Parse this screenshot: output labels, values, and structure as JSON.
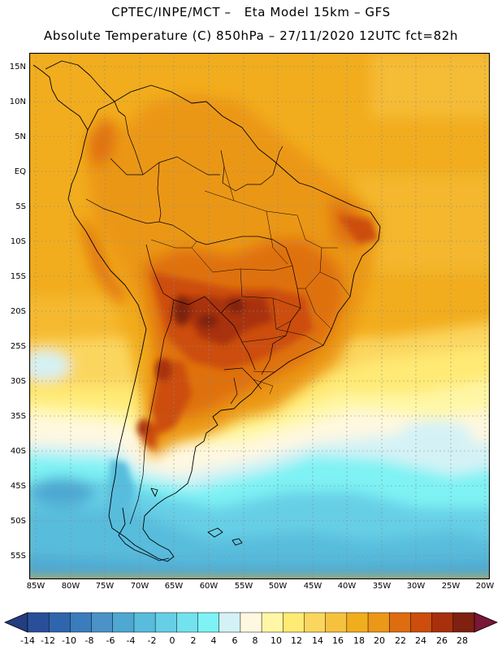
{
  "title": {
    "line1": "CPTEC/INPE/MCT –   Eta Model 15km – GFS",
    "line2": "Absolute Temperature (C) 850hPa – 27/11/2020 12UTC fct=82h"
  },
  "lat_labels": [
    "15N",
    "10N",
    "5N",
    "EQ",
    "5S",
    "10S",
    "15S",
    "20S",
    "25S",
    "30S",
    "35S",
    "40S",
    "45S",
    "50S",
    "55S"
  ],
  "lon_labels": [
    "85W",
    "80W",
    "75W",
    "70W",
    "65W",
    "60W",
    "55W",
    "50W",
    "45W",
    "40W",
    "35W",
    "30W",
    "25W",
    "20W"
  ],
  "colorbar": {
    "labels": [
      "-14",
      "-12",
      "-10",
      "-8",
      "-6",
      "-4",
      "-2",
      "0",
      "2",
      "4",
      "6",
      "8",
      "10",
      "12",
      "14",
      "16",
      "18",
      "20",
      "22",
      "24",
      "26",
      "28"
    ],
    "colors": [
      "#2a4f9a",
      "#2f65ad",
      "#3b7cbd",
      "#4a92c7",
      "#4ea8d2",
      "#58bcdc",
      "#66cfe6",
      "#72e2ee",
      "#7ef2f4",
      "#d4f2f6",
      "#fff8e0",
      "#fff7a6",
      "#ffea74",
      "#fbd65e",
      "#f6c23e",
      "#f2ad1e",
      "#eb9718",
      "#de6d10",
      "#cc4d0c",
      "#a8300c",
      "#7f2010"
    ]
  },
  "map": {
    "ocean_color": "#f2ad1e",
    "land_color": "#eb9718",
    "heat_color": "#cc4d0c",
    "core_color": "#7f2010",
    "cold_color": "#58bcdc"
  }
}
